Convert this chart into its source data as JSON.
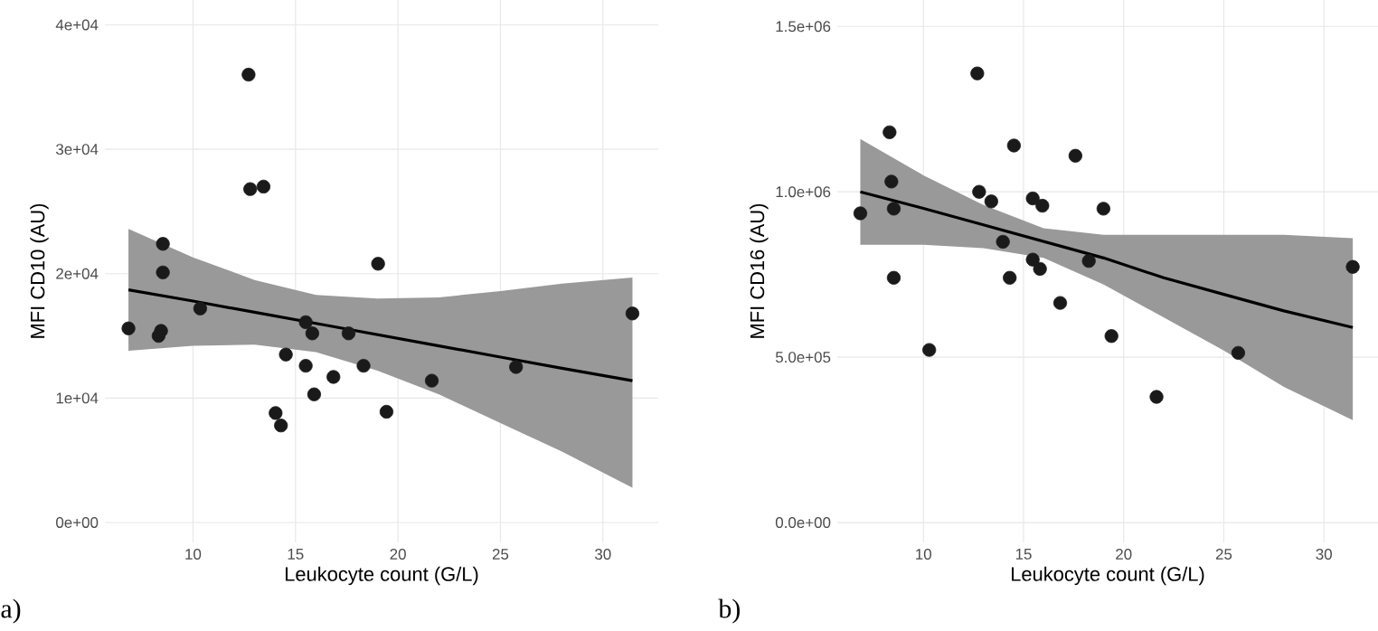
{
  "chart_data": [
    {
      "type": "scatter",
      "xlabel": "Leukocyte count (G/L)",
      "ylabel": "MFI CD10 (AU)",
      "annotations": [
        "a)"
      ],
      "xlim": [
        5.7,
        32.7
      ],
      "ylim": [
        -1600,
        42000
      ],
      "xticks": [
        10,
        15,
        20,
        25,
        30
      ],
      "yticks": [
        {
          "value": 0,
          "label": "0e+00"
        },
        {
          "value": 10000,
          "label": "1e+04"
        },
        {
          "value": 20000,
          "label": "2e+04"
        },
        {
          "value": 30000,
          "label": "3e+04"
        },
        {
          "value": 40000,
          "label": "4e+04"
        }
      ],
      "grid": true,
      "series": [
        {
          "color": "#1a1a1a",
          "x": [
            6.85,
            8.53,
            8.53,
            8.44,
            8.32,
            10.35,
            12.71,
            12.79,
            13.44,
            14.03,
            14.29,
            14.53,
            15.5,
            15.5,
            15.82,
            15.91,
            16.85,
            17.59,
            18.32,
            19.03,
            19.44,
            21.65,
            25.76,
            31.44
          ],
          "values": [
            15600,
            22400,
            20100,
            15400,
            15000,
            17200,
            36000,
            26800,
            27000,
            8800,
            7800,
            13500,
            16100,
            12600,
            15200,
            10300,
            11700,
            15200,
            12600,
            20800,
            8900,
            11400,
            12500,
            16800
          ]
        },
        {
          "type": "line",
          "color": "#000000",
          "x": [
            6.85,
            10,
            13,
            16,
            19,
            22,
            25,
            28,
            31.44
          ],
          "values": [
            18700,
            17800,
            16900,
            16000,
            15100,
            14200,
            13300,
            12400,
            11400
          ],
          "lower": [
            13800,
            14200,
            14300,
            13700,
            12200,
            10300,
            8000,
            5700,
            2800
          ],
          "upper": [
            23600,
            21300,
            19500,
            18300,
            18000,
            18100,
            18600,
            19200,
            19700
          ]
        }
      ]
    },
    {
      "type": "scatter",
      "xlabel": "Leukocyte count (G/L)",
      "ylabel": "MFI CD16 (AU)",
      "annotations": [
        "b)"
      ],
      "xlim": [
        5.7,
        32.7
      ],
      "ylim": [
        -60000,
        1580000
      ],
      "xticks": [
        10,
        15,
        20,
        25,
        30
      ],
      "yticks": [
        {
          "value": 0,
          "label": "0.0e+00"
        },
        {
          "value": 500000,
          "label": "5.0e+05"
        },
        {
          "value": 1000000,
          "label": "1.0e+06"
        },
        {
          "value": 1500000,
          "label": "1.5e+06"
        }
      ],
      "grid": true,
      "series": [
        {
          "color": "#1a1a1a",
          "x": [
            6.85,
            8.31,
            8.4,
            8.52,
            8.52,
            10.29,
            12.69,
            12.78,
            13.39,
            13.97,
            14.31,
            14.52,
            15.46,
            15.46,
            15.82,
            15.94,
            16.83,
            17.59,
            18.26,
            18.99,
            19.39,
            21.64,
            25.72,
            31.44
          ],
          "values": [
            935000,
            1180000,
            1031000,
            949000,
            740000,
            522000,
            1358000,
            1000000,
            971000,
            849000,
            740000,
            1140000,
            980000,
            795000,
            767000,
            958000,
            664000,
            1109000,
            791000,
            949000,
            564000,
            380000,
            513000,
            773000
          ]
        },
        {
          "type": "line",
          "color": "#000000",
          "x": [
            6.85,
            10,
            13,
            16,
            19,
            22,
            25,
            28,
            31.44
          ],
          "values": [
            1000000,
            950000,
            900000,
            850000,
            800000,
            740000,
            690000,
            640000,
            590000
          ],
          "lower": [
            840000,
            840000,
            830000,
            800000,
            720000,
            620000,
            520000,
            410000,
            310000
          ],
          "upper": [
            1160000,
            1050000,
            960000,
            890000,
            870000,
            870000,
            870000,
            870000,
            860000
          ]
        }
      ]
    }
  ]
}
